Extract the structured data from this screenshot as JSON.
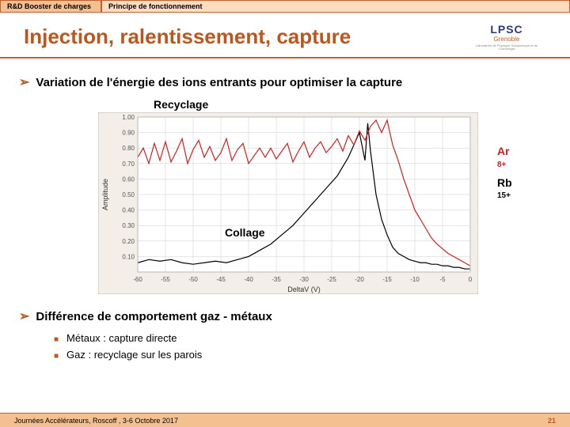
{
  "header": {
    "tab1": "R&D Booster de charges",
    "tab2": "Principe de fonctionnement"
  },
  "title": "Injection, ralentissement, capture",
  "logo": {
    "text": "LPSC",
    "city": "Grenoble",
    "sub": "Laboratoire de Physique Subatomique et de Cosmologie"
  },
  "bullet_a": "Variation de l'énergie des ions entrants pour optimiser la capture",
  "rec_label": "Recyclage",
  "collage_label": "Collage",
  "legend": {
    "ar": "Ar",
    "ar_sup": "8+",
    "rb": "Rb",
    "rb_sup": "15+"
  },
  "bullet_b": "Différence de comportement gaz - métaux",
  "sub1": "Métaux : capture directe",
  "sub2": "Gaz : recyclage sur les parois",
  "footer": {
    "left": "Journées Accélérateurs, Roscoff , 3-6 Octobre 2017",
    "page": "21"
  },
  "chart": {
    "bg": "#f3efe8",
    "plot_bg": "#ffffff",
    "border": "#b8b8b8",
    "grid": "#cccccc",
    "ylabel": "Amplitude",
    "xlabel": "DeltaV (V)",
    "x": {
      "min": -60,
      "max": 0,
      "ticks": [
        -60,
        -55,
        -50,
        -45,
        -40,
        -35,
        -30,
        -25,
        -20,
        -15,
        -10,
        -5,
        0
      ]
    },
    "y": {
      "min": 0,
      "max": 1.0,
      "ticks": [
        0.1,
        0.2,
        0.3,
        0.4,
        0.5,
        0.6,
        0.7,
        0.8,
        0.9,
        1.0
      ]
    },
    "font_tick": 8,
    "font_label": 9,
    "series": {
      "ar": {
        "color": "#d02020",
        "width": 1.2,
        "data": [
          [
            -60,
            0.74
          ],
          [
            -59,
            0.8
          ],
          [
            -58,
            0.7
          ],
          [
            -57,
            0.83
          ],
          [
            -56,
            0.72
          ],
          [
            -55,
            0.84
          ],
          [
            -54,
            0.71
          ],
          [
            -53,
            0.78
          ],
          [
            -52,
            0.86
          ],
          [
            -51,
            0.7
          ],
          [
            -50,
            0.79
          ],
          [
            -49,
            0.85
          ],
          [
            -48,
            0.74
          ],
          [
            -47,
            0.81
          ],
          [
            -46,
            0.72
          ],
          [
            -45,
            0.77
          ],
          [
            -44,
            0.86
          ],
          [
            -43,
            0.72
          ],
          [
            -42,
            0.79
          ],
          [
            -41,
            0.83
          ],
          [
            -40,
            0.7
          ],
          [
            -39,
            0.75
          ],
          [
            -38,
            0.8
          ],
          [
            -37,
            0.74
          ],
          [
            -36,
            0.8
          ],
          [
            -35,
            0.73
          ],
          [
            -34,
            0.78
          ],
          [
            -33,
            0.83
          ],
          [
            -32,
            0.71
          ],
          [
            -31,
            0.78
          ],
          [
            -30,
            0.84
          ],
          [
            -29,
            0.74
          ],
          [
            -28,
            0.8
          ],
          [
            -27,
            0.84
          ],
          [
            -26,
            0.77
          ],
          [
            -25,
            0.81
          ],
          [
            -24,
            0.86
          ],
          [
            -23,
            0.78
          ],
          [
            -22,
            0.88
          ],
          [
            -21,
            0.82
          ],
          [
            -20,
            0.91
          ],
          [
            -19,
            0.85
          ],
          [
            -18,
            0.94
          ],
          [
            -17,
            0.98
          ],
          [
            -16,
            0.9
          ],
          [
            -15,
            0.98
          ],
          [
            -14,
            0.82
          ],
          [
            -13,
            0.72
          ],
          [
            -12,
            0.6
          ],
          [
            -11,
            0.5
          ],
          [
            -10,
            0.4
          ],
          [
            -9,
            0.34
          ],
          [
            -8,
            0.28
          ],
          [
            -7,
            0.22
          ],
          [
            -6,
            0.18
          ],
          [
            -5,
            0.15
          ],
          [
            -4,
            0.12
          ],
          [
            -3,
            0.1
          ],
          [
            -2,
            0.08
          ],
          [
            -1,
            0.06
          ],
          [
            0,
            0.04
          ]
        ]
      },
      "rb": {
        "color": "#000000",
        "width": 1.2,
        "data": [
          [
            -60,
            0.06
          ],
          [
            -58,
            0.08
          ],
          [
            -56,
            0.07
          ],
          [
            -54,
            0.08
          ],
          [
            -52,
            0.06
          ],
          [
            -50,
            0.05
          ],
          [
            -48,
            0.06
          ],
          [
            -46,
            0.07
          ],
          [
            -44,
            0.06
          ],
          [
            -42,
            0.08
          ],
          [
            -40,
            0.1
          ],
          [
            -38,
            0.14
          ],
          [
            -36,
            0.18
          ],
          [
            -34,
            0.24
          ],
          [
            -32,
            0.3
          ],
          [
            -30,
            0.38
          ],
          [
            -28,
            0.46
          ],
          [
            -26,
            0.54
          ],
          [
            -24,
            0.62
          ],
          [
            -22,
            0.74
          ],
          [
            -21,
            0.82
          ],
          [
            -20,
            0.9
          ],
          [
            -19,
            0.72
          ],
          [
            -18.5,
            0.96
          ],
          [
            -18,
            0.78
          ],
          [
            -17,
            0.5
          ],
          [
            -16,
            0.34
          ],
          [
            -15,
            0.24
          ],
          [
            -14,
            0.16
          ],
          [
            -13,
            0.12
          ],
          [
            -12,
            0.1
          ],
          [
            -11,
            0.08
          ],
          [
            -10,
            0.07
          ],
          [
            -9,
            0.06
          ],
          [
            -8,
            0.06
          ],
          [
            -7,
            0.05
          ],
          [
            -6,
            0.05
          ],
          [
            -5,
            0.04
          ],
          [
            -4,
            0.04
          ],
          [
            -3,
            0.03
          ],
          [
            -2,
            0.03
          ],
          [
            -1,
            0.02
          ],
          [
            0,
            0.02
          ]
        ]
      }
    }
  }
}
